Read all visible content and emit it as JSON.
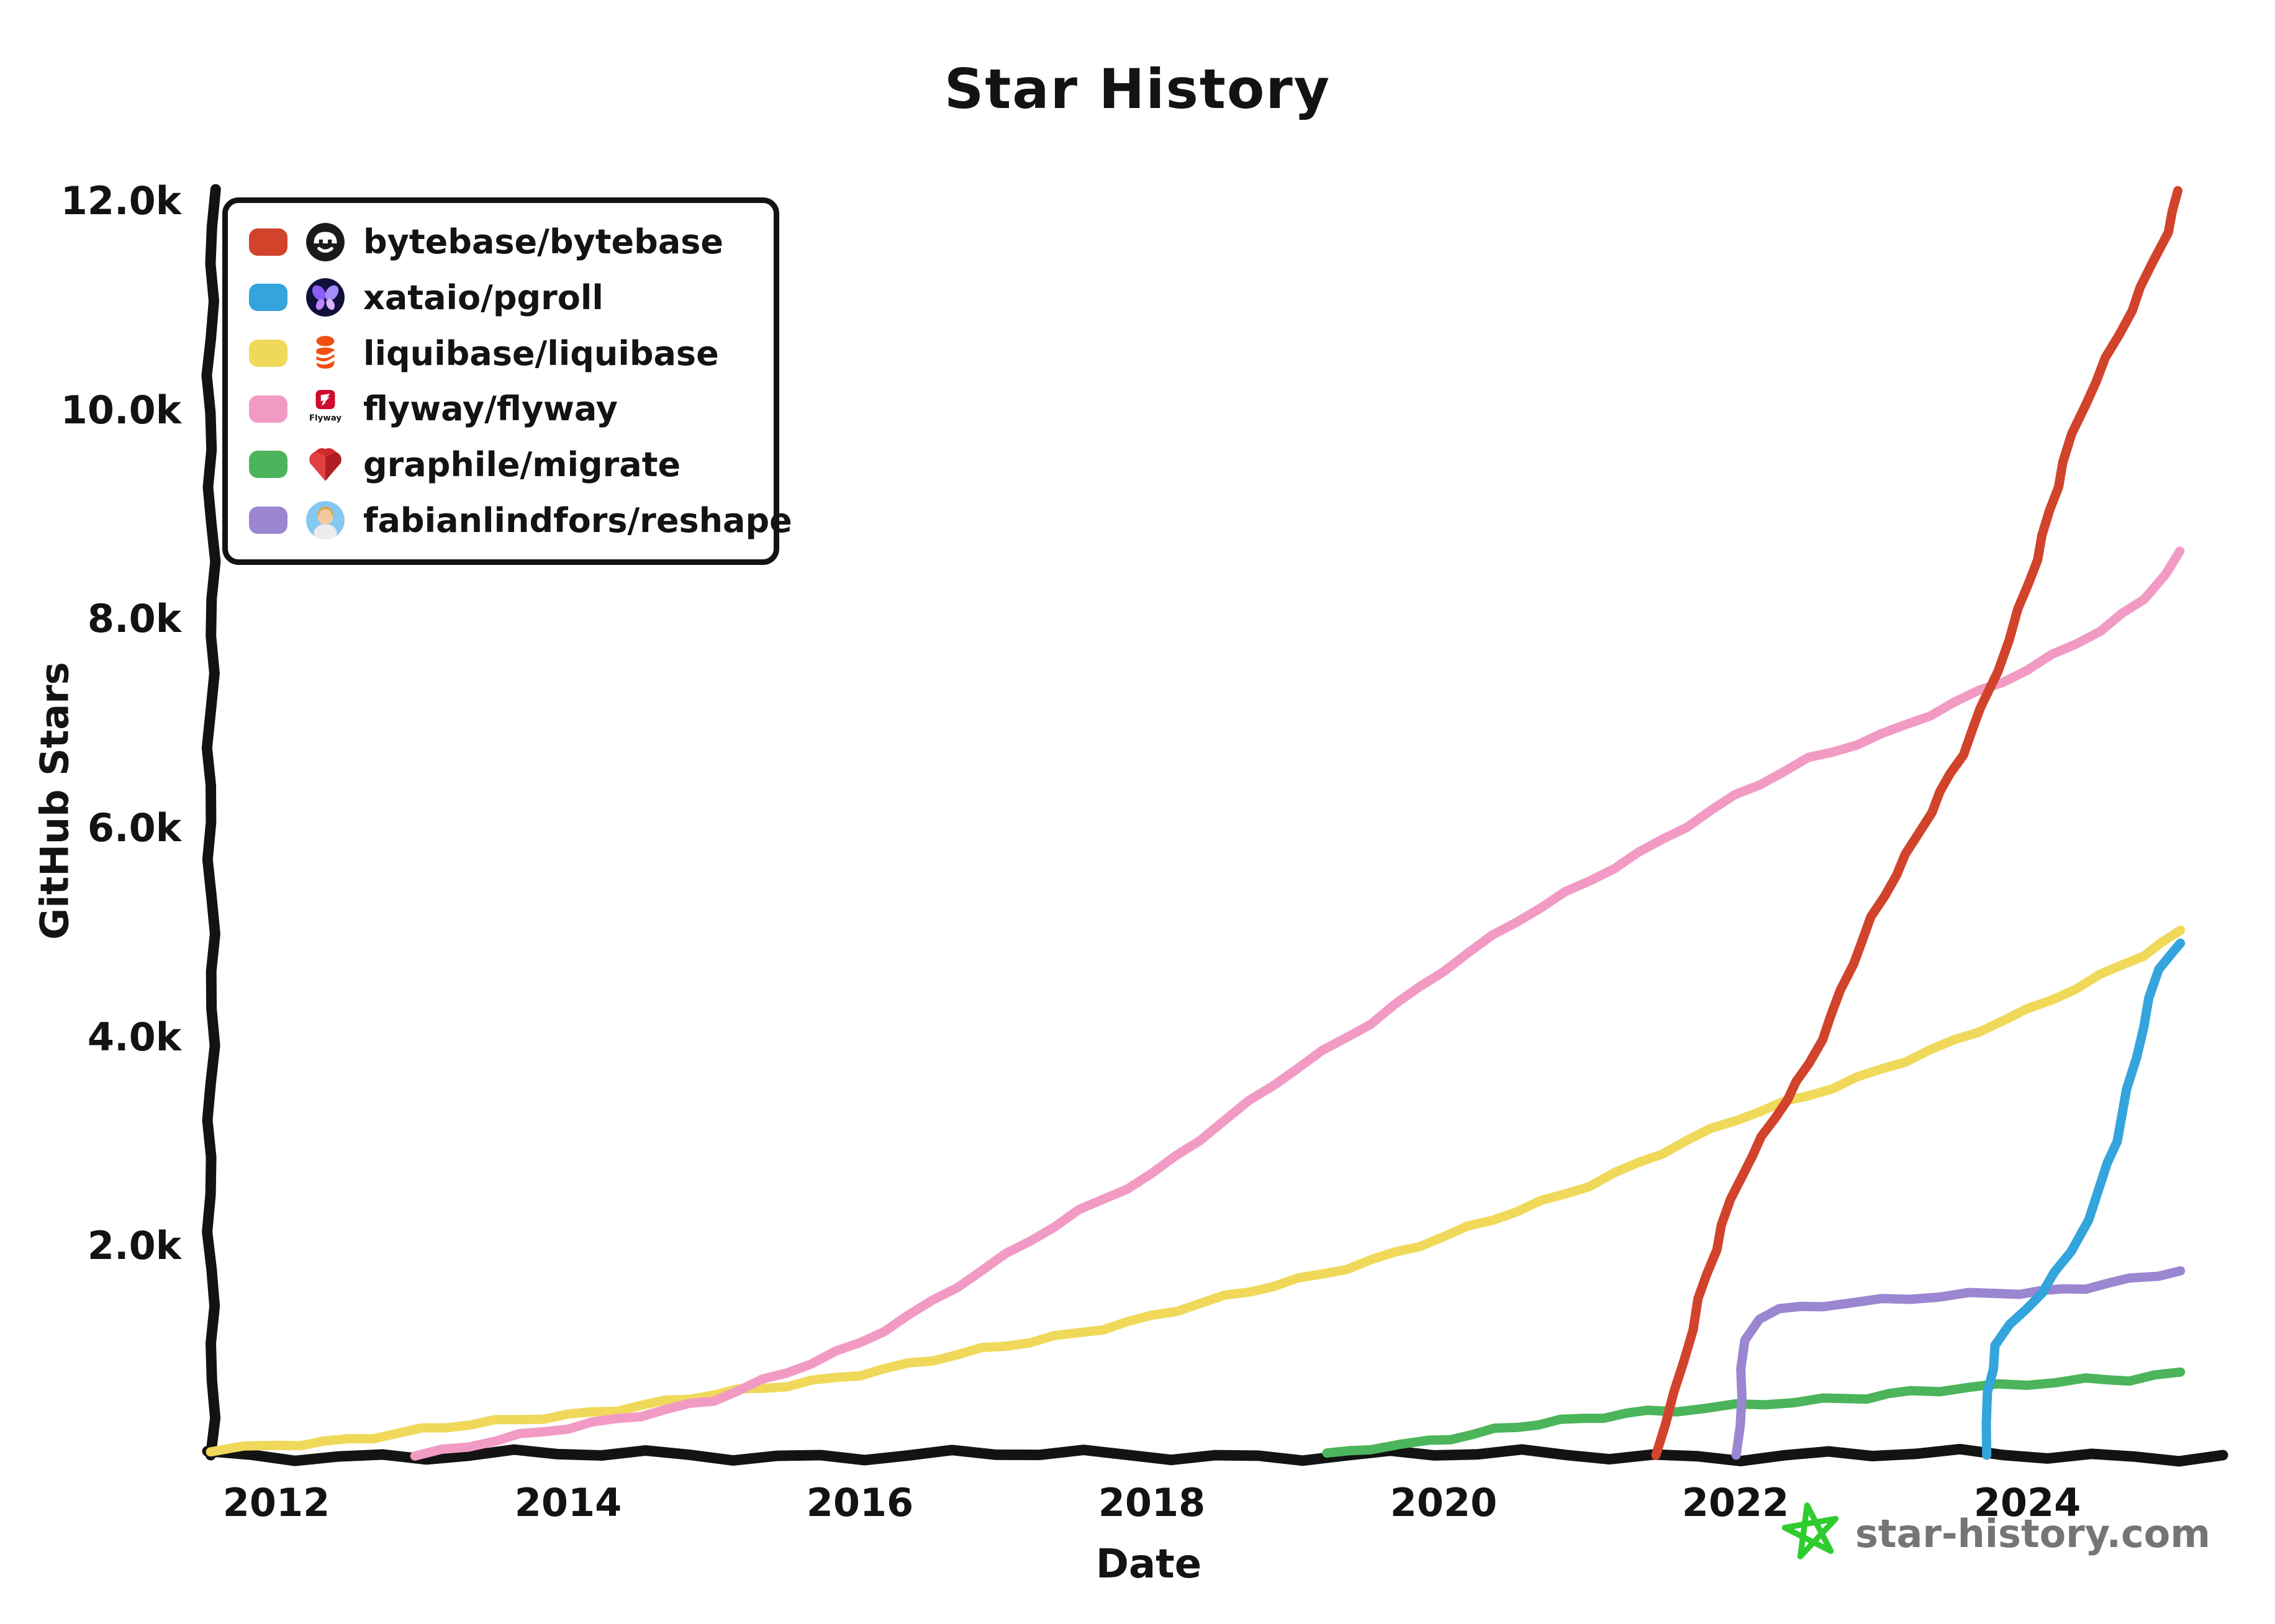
{
  "title": "Star History",
  "ink_color": "#131313",
  "axes": {
    "x_label": "Date",
    "y_label": "GitHub Stars",
    "y_ticks": [
      {
        "label": "12.0k",
        "value": 12000
      },
      {
        "label": "10.0k",
        "value": 10000
      },
      {
        "label": "8.0k",
        "value": 8000
      },
      {
        "label": "6.0k",
        "value": 6000
      },
      {
        "label": "4.0k",
        "value": 4000
      },
      {
        "label": "2.0k",
        "value": 2000
      }
    ],
    "x_ticks": [
      {
        "label": "2012",
        "year": 2012
      },
      {
        "label": "2014",
        "year": 2014
      },
      {
        "label": "2016",
        "year": 2016
      },
      {
        "label": "2018",
        "year": 2018
      },
      {
        "label": "2020",
        "year": 2020
      },
      {
        "label": "2022",
        "year": 2022
      },
      {
        "label": "2024",
        "year": 2024
      }
    ]
  },
  "watermark": {
    "site": "star-history.com",
    "star_icon_color": "#2fcc2f",
    "text_color": "#757575"
  },
  "chart_data": {
    "type": "line",
    "title": "Star History",
    "xlabel": "Date",
    "ylabel": "GitHub Stars",
    "x_unit": "decimal_year",
    "xlim": [
      2011.55,
      2025.34
    ],
    "ylim": [
      0,
      12100
    ],
    "grid": false,
    "legend_position": "top-left",
    "draw_order": [
      2,
      3,
      4,
      5,
      1,
      0
    ],
    "series": [
      {
        "name": "bytebase/bytebase",
        "label": "bytebase/bytebase",
        "color": "#d2432c",
        "logo": "bytebase-logo",
        "points": [
          [
            2021.45,
            0
          ],
          [
            2021.6,
            600
          ],
          [
            2021.75,
            1500
          ],
          [
            2021.9,
            2200
          ],
          [
            2022.05,
            2700
          ],
          [
            2022.2,
            3050
          ],
          [
            2022.35,
            3400
          ],
          [
            2022.5,
            3750
          ],
          [
            2022.65,
            4200
          ],
          [
            2022.8,
            4700
          ],
          [
            2022.95,
            5150
          ],
          [
            2023.1,
            5550
          ],
          [
            2023.25,
            5950
          ],
          [
            2023.4,
            6350
          ],
          [
            2023.55,
            6700
          ],
          [
            2023.7,
            7150
          ],
          [
            2023.8,
            7500
          ],
          [
            2023.95,
            8100
          ],
          [
            2024.1,
            8800
          ],
          [
            2024.25,
            9500
          ],
          [
            2024.4,
            10050
          ],
          [
            2024.55,
            10500
          ],
          [
            2024.7,
            10950
          ],
          [
            2024.85,
            11400
          ],
          [
            2024.95,
            11700
          ],
          [
            2025.05,
            12100
          ]
        ]
      },
      {
        "name": "xataio/pgroll",
        "label": "xataio/pgroll",
        "color": "#34a4dd",
        "logo": "xata-logo",
        "points": [
          [
            2023.7,
            0
          ],
          [
            2023.73,
            600
          ],
          [
            2023.78,
            1050
          ],
          [
            2023.9,
            1250
          ],
          [
            2024.0,
            1400
          ],
          [
            2024.1,
            1550
          ],
          [
            2024.2,
            1750
          ],
          [
            2024.3,
            1950
          ],
          [
            2024.4,
            2250
          ],
          [
            2024.5,
            2600
          ],
          [
            2024.6,
            3000
          ],
          [
            2024.7,
            3500
          ],
          [
            2024.8,
            4100
          ],
          [
            2024.9,
            4650
          ],
          [
            2025.0,
            4850
          ],
          [
            2025.05,
            4900
          ]
        ]
      },
      {
        "name": "liquibase/liquibase",
        "label": "liquibase/liquibase",
        "color": "#f0d95a",
        "logo": "liquibase-logo",
        "points": [
          [
            2011.55,
            30
          ],
          [
            2012,
            90
          ],
          [
            2012.5,
            160
          ],
          [
            2013,
            240
          ],
          [
            2013.5,
            310
          ],
          [
            2014,
            390
          ],
          [
            2014.5,
            480
          ],
          [
            2015,
            570
          ],
          [
            2015.5,
            670
          ],
          [
            2016,
            790
          ],
          [
            2016.5,
            910
          ],
          [
            2017,
            1040
          ],
          [
            2017.5,
            1180
          ],
          [
            2018,
            1330
          ],
          [
            2018.5,
            1500
          ],
          [
            2019,
            1680
          ],
          [
            2019.5,
            1870
          ],
          [
            2020,
            2080
          ],
          [
            2020.5,
            2330
          ],
          [
            2021,
            2600
          ],
          [
            2021.5,
            2900
          ],
          [
            2022,
            3200
          ],
          [
            2022.5,
            3450
          ],
          [
            2023,
            3700
          ],
          [
            2023.5,
            3950
          ],
          [
            2024,
            4250
          ],
          [
            2024.5,
            4600
          ],
          [
            2024.8,
            4800
          ],
          [
            2025.05,
            5000
          ]
        ]
      },
      {
        "name": "flyway/flyway",
        "label": "flyway/flyway",
        "color": "#f19bc4",
        "logo": "flyway-logo",
        "points": [
          [
            2012.95,
            0
          ],
          [
            2013.5,
            130
          ],
          [
            2014,
            260
          ],
          [
            2014.5,
            400
          ],
          [
            2015,
            530
          ],
          [
            2015.5,
            780
          ],
          [
            2016,
            1080
          ],
          [
            2016.5,
            1480
          ],
          [
            2017,
            1900
          ],
          [
            2017.5,
            2330
          ],
          [
            2018,
            2700
          ],
          [
            2018.5,
            3200
          ],
          [
            2019,
            3700
          ],
          [
            2019.5,
            4150
          ],
          [
            2020,
            4650
          ],
          [
            2020.5,
            5100
          ],
          [
            2021,
            5500
          ],
          [
            2021.5,
            5900
          ],
          [
            2022,
            6300
          ],
          [
            2022.5,
            6650
          ],
          [
            2023,
            6900
          ],
          [
            2023.5,
            7200
          ],
          [
            2024,
            7500
          ],
          [
            2024.5,
            7900
          ],
          [
            2024.8,
            8200
          ],
          [
            2025.05,
            8650
          ]
        ]
      },
      {
        "name": "graphile/migrate",
        "label": "graphile/migrate",
        "color": "#4cb45a",
        "logo": "graphile-logo",
        "points": [
          [
            2019.2,
            0
          ],
          [
            2019.5,
            80
          ],
          [
            2019.9,
            140
          ],
          [
            2020.2,
            200
          ],
          [
            2020.5,
            260
          ],
          [
            2020.8,
            320
          ],
          [
            2021.1,
            380
          ],
          [
            2021.4,
            430
          ],
          [
            2021.8,
            450
          ],
          [
            2022.2,
            480
          ],
          [
            2022.6,
            520
          ],
          [
            2022.9,
            560
          ],
          [
            2023.2,
            620
          ],
          [
            2023.6,
            650
          ],
          [
            2024.0,
            670
          ],
          [
            2024.4,
            710
          ],
          [
            2024.7,
            730
          ],
          [
            2025.05,
            800
          ]
        ]
      },
      {
        "name": "fabianlindfors/reshape",
        "label": "fabianlindfors/reshape",
        "color": "#9b86d1",
        "logo": "reshape-logo",
        "points": [
          [
            2022.02,
            0
          ],
          [
            2022.07,
            1100
          ],
          [
            2022.15,
            1300
          ],
          [
            2022.3,
            1400
          ],
          [
            2022.6,
            1450
          ],
          [
            2023.0,
            1480
          ],
          [
            2023.4,
            1510
          ],
          [
            2023.8,
            1540
          ],
          [
            2024.1,
            1570
          ],
          [
            2024.4,
            1620
          ],
          [
            2024.7,
            1680
          ],
          [
            2024.9,
            1720
          ],
          [
            2025.05,
            1760
          ]
        ]
      }
    ]
  }
}
